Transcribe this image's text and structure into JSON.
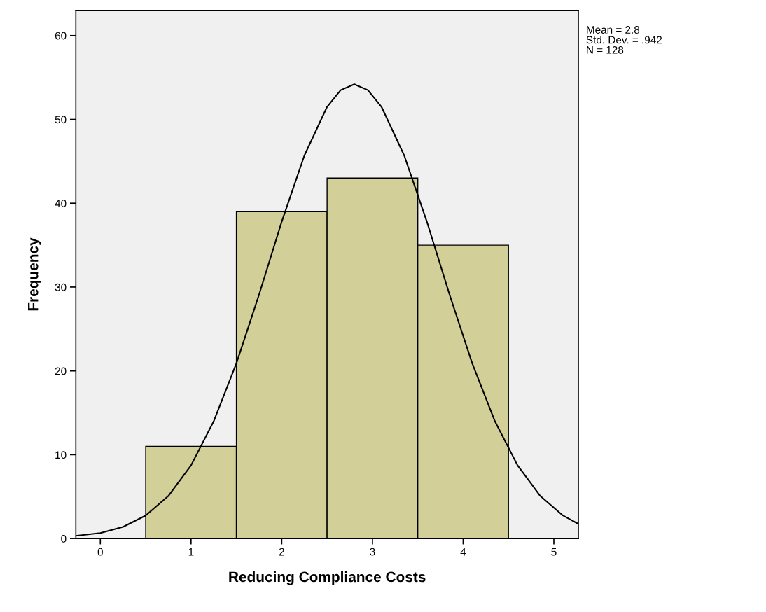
{
  "chart_data": {
    "type": "histogram",
    "xlabel": "Reducing Compliance Costs",
    "ylabel": "Frequency",
    "bins": [
      0.5,
      1.5,
      2.5,
      3.5,
      4.5
    ],
    "values": [
      11,
      39,
      43,
      35
    ],
    "color": "#d3cf99",
    "series": [
      {
        "type": "line",
        "color": "#000000",
        "x": [
          -0.27,
          0,
          0.25,
          0.5,
          0.75,
          1.0,
          1.25,
          1.5,
          1.75,
          2.0,
          2.25,
          2.5,
          2.65,
          2.8,
          2.95,
          3.1,
          3.35,
          3.6,
          3.85,
          4.1,
          4.35,
          4.6,
          4.85,
          5.1,
          5.27
        ],
        "values": [
          0.32,
          0.65,
          1.39,
          2.75,
          5.08,
          8.73,
          14.0,
          20.9,
          29.1,
          37.8,
          45.7,
          51.5,
          53.5,
          54.2,
          53.5,
          51.5,
          45.7,
          37.8,
          29.1,
          20.9,
          14.0,
          8.73,
          5.08,
          2.75,
          1.74
        ]
      }
    ],
    "xlim": [
      -0.27,
      5.27
    ],
    "xticks": [
      0,
      1,
      2,
      3,
      4,
      5
    ],
    "ylim": [
      0,
      63
    ],
    "yticks": [
      0,
      10,
      20,
      30,
      40,
      50,
      60
    ],
    "grid": false,
    "annotations": [
      "Mean = 2.8",
      "Std. Dev. = .942",
      "N = 128"
    ]
  }
}
